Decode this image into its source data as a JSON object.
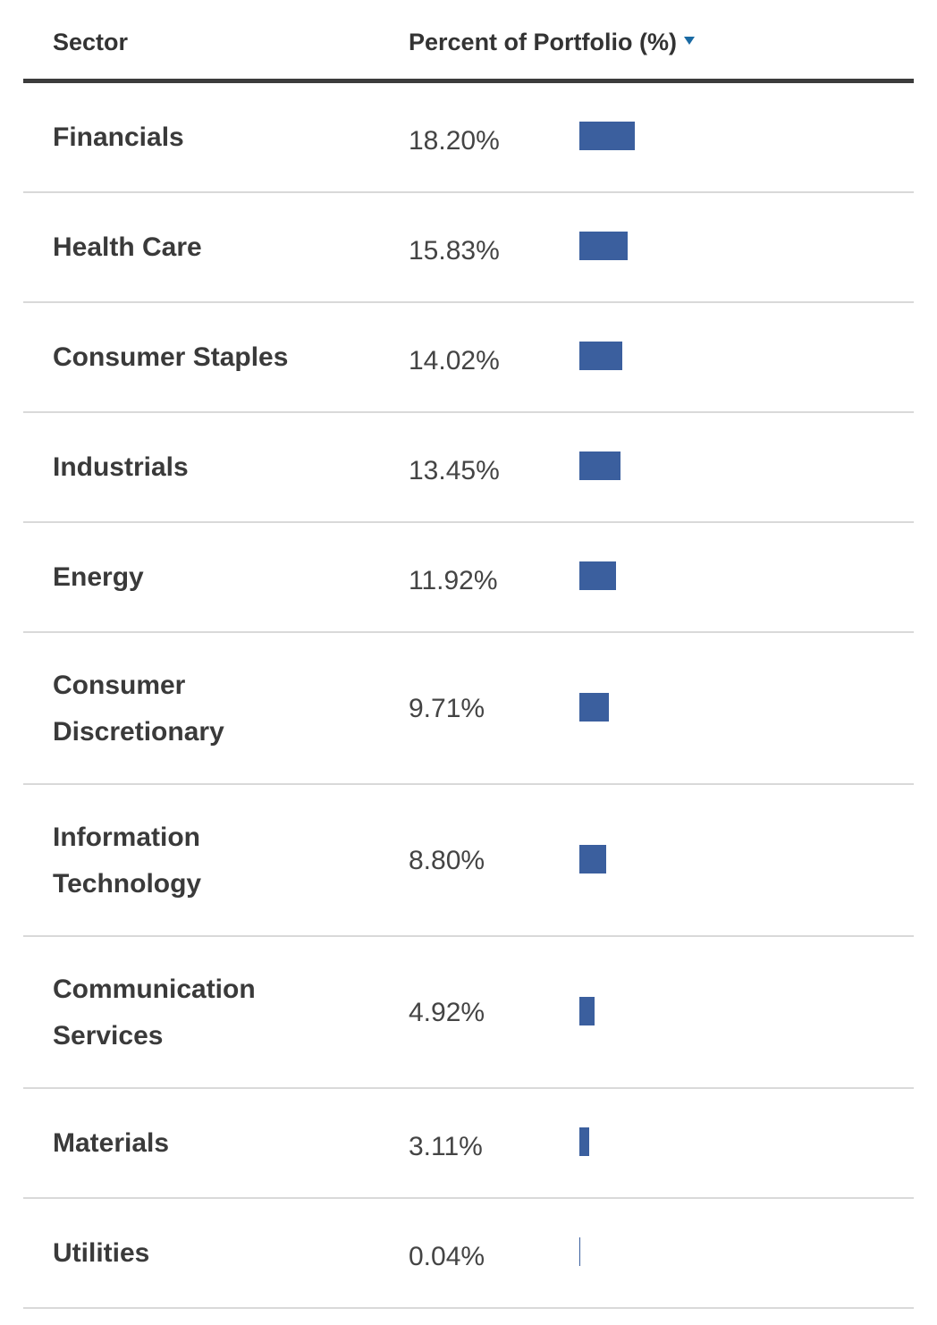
{
  "header": {
    "sector_label": "Sector",
    "percent_label": "Percent of Portfolio (%)",
    "sort_icon": "sort-descending-caret"
  },
  "colors": {
    "bar": "#3b5f9e",
    "header_rule": "#3c3c3c",
    "row_rule": "#d9d9d9",
    "sort_caret": "#1a6aa3"
  },
  "bar_scale_max_percent": 18.2,
  "rows": [
    {
      "sector": "Financials",
      "percent_text": "18.20%",
      "percent": 18.2,
      "lines": 1
    },
    {
      "sector": "Health Care",
      "percent_text": "15.83%",
      "percent": 15.83,
      "lines": 1
    },
    {
      "sector": "Consumer Staples",
      "percent_text": "14.02%",
      "percent": 14.02,
      "lines": 1
    },
    {
      "sector": "Industrials",
      "percent_text": "13.45%",
      "percent": 13.45,
      "lines": 1
    },
    {
      "sector": "Energy",
      "percent_text": "11.92%",
      "percent": 11.92,
      "lines": 1
    },
    {
      "sector": "Consumer Discretionary",
      "percent_text": "9.71%",
      "percent": 9.71,
      "lines": 2
    },
    {
      "sector": "Information Technology",
      "percent_text": "8.80%",
      "percent": 8.8,
      "lines": 2
    },
    {
      "sector": "Communication Services",
      "percent_text": "4.92%",
      "percent": 4.92,
      "lines": 2
    },
    {
      "sector": "Materials",
      "percent_text": "3.11%",
      "percent": 3.11,
      "lines": 1
    },
    {
      "sector": "Utilities",
      "percent_text": "0.04%",
      "percent": 0.04,
      "lines": 1
    }
  ]
}
